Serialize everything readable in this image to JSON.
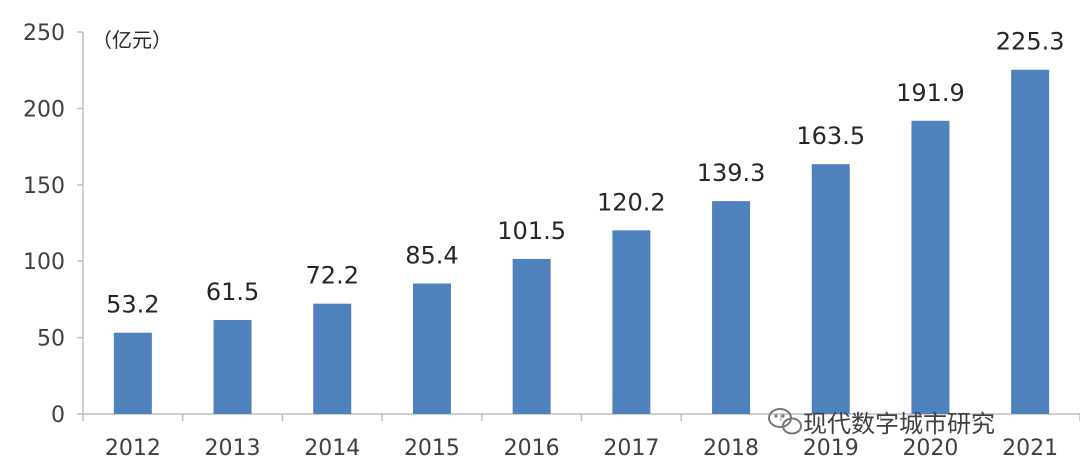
{
  "chart_data": {
    "type": "bar",
    "categories": [
      "2012",
      "2013",
      "2014",
      "2015",
      "2016",
      "2017",
      "2018",
      "2019",
      "2020",
      "2021"
    ],
    "values": [
      53.2,
      61.5,
      72.2,
      85.4,
      101.5,
      120.2,
      139.3,
      163.5,
      191.9,
      225.3
    ],
    "title": "",
    "xlabel": "",
    "ylabel": "（亿元）",
    "ylim": [
      0,
      250
    ],
    "yticks": [
      0,
      50,
      100,
      150,
      200,
      250
    ],
    "grid": false,
    "legend": "none",
    "data_labels": [
      "53.2",
      "61.5",
      "72.2",
      "85.4",
      "101.5",
      "120.2",
      "139.3",
      "163.5",
      "191.9",
      "225.3"
    ],
    "bar_color": "#4f81bd",
    "axis_color": "#bfbfbf"
  },
  "watermark": {
    "text": "现代数字城市研究",
    "icon": "wechat-icon"
  }
}
